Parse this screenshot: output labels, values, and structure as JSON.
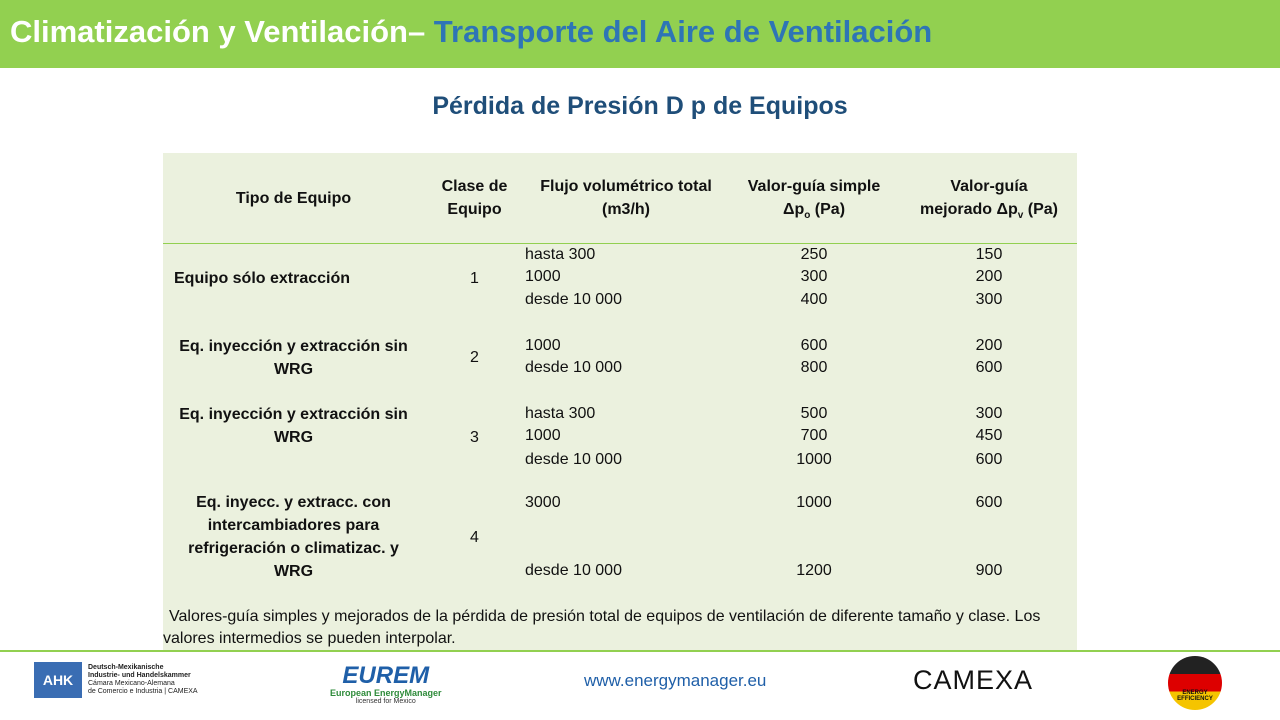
{
  "header": {
    "title_main": "Climatización y Ventilación–",
    "title_accent": " Transporte del Aire de Ventilación"
  },
  "subtitle": "Pérdida de Presión D p de Equipos",
  "table": {
    "columns": [
      {
        "line1": "Tipo de Equipo"
      },
      {
        "line1": "Clase de",
        "line2": "Equipo"
      },
      {
        "line1": "Flujo volumétrico total",
        "line2": "(m3/h)"
      },
      {
        "line1": "Valor-guía simple",
        "symbol": "Δp",
        "sub": "o",
        "unit": " (Pa)"
      },
      {
        "line1": "Valor-guía",
        "symbol": "mejorado Δp",
        "sub": "v",
        "unit": " (Pa)"
      }
    ],
    "rows": [
      {
        "tipo": "Equipo sólo extracción",
        "clase": 1,
        "flujo": [
          "hasta 300",
          "1000",
          "desde 10 000"
        ],
        "simple": [
          250,
          300,
          400
        ],
        "mejorado": [
          150,
          200,
          300
        ]
      },
      {
        "tipo": "Eq. inyección y extracción sin WRG",
        "clase": 2,
        "flujo": [
          "1000",
          "desde 10 000"
        ],
        "simple": [
          600,
          800
        ],
        "mejorado": [
          200,
          600
        ]
      },
      {
        "tipo": "Eq. inyección y extracción sin WRG",
        "clase": 3,
        "flujo": [
          "hasta 300",
          "1000",
          "desde 10 000"
        ],
        "simple": [
          500,
          700,
          1000
        ],
        "mejorado": [
          300,
          450,
          600
        ]
      },
      {
        "tipo": "Eq. inyecc. y extracc. con intercambiadores para refrigeración o climatizac. y WRG",
        "clase": 4,
        "flujo": [
          "3000",
          "desde 10 000"
        ],
        "simple": [
          1000,
          1200
        ],
        "mejorado": [
          600,
          900
        ]
      }
    ],
    "note": "Valores-guía simples y mejorados de la pérdida de presión total de equipos de ventilación de diferente tamaño y clase. Los valores intermedios se pueden interpolar."
  },
  "footer": {
    "ahk": "AHK",
    "ahk_line1": "Deutsch-Mexikanische",
    "ahk_line2": "Industrie- und Handelskammer",
    "ahk_line3": "Cámara Mexicano-Alemana",
    "ahk_line4": "de Comercio e Industria | CAMEXA",
    "eurem": "EUREM",
    "eurem_sub": "European EnergyManager",
    "eurem_lic": "licensed for Mexico",
    "url": "www.energymanager.eu",
    "camexa": "CAMEXA",
    "ee": "ENERGY EFFICIENCY"
  }
}
